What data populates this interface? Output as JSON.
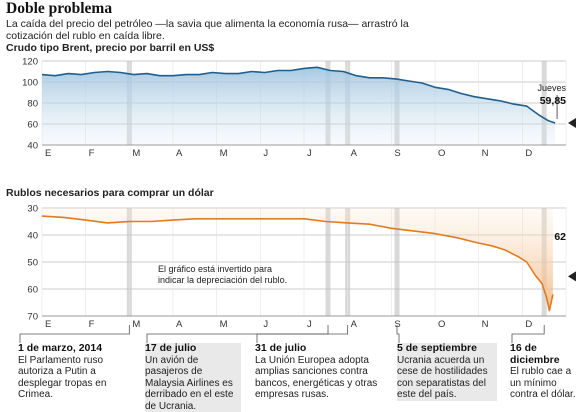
{
  "header": {
    "title": "Doble problema",
    "subtitle": "La caída del precio del petróleo —la savia que alimenta la economía rusa— arrastró la cotización del rublo en caída libre."
  },
  "chart_data": [
    {
      "type": "line",
      "title": "Crudo tipo Brent, precio por barril en US$",
      "months": [
        "E",
        "F",
        "M",
        "A",
        "M",
        "J",
        "J",
        "A",
        "S",
        "O",
        "N",
        "D"
      ],
      "ylim": [
        40,
        120
      ],
      "yticks": [
        40,
        60,
        80,
        100,
        120
      ],
      "grid": true,
      "x": [
        0,
        0.3,
        0.6,
        0.9,
        1.2,
        1.5,
        1.8,
        2.1,
        2.4,
        2.7,
        3.0,
        3.3,
        3.6,
        3.9,
        4.2,
        4.5,
        4.8,
        5.1,
        5.4,
        5.7,
        6.0,
        6.3,
        6.6,
        6.9,
        7.2,
        7.5,
        7.8,
        8.1,
        8.4,
        8.7,
        9.0,
        9.3,
        9.6,
        9.9,
        10.2,
        10.5,
        10.8,
        11.1,
        11.4,
        11.6,
        11.75
      ],
      "y": [
        107,
        106,
        108,
        107,
        109,
        110,
        109,
        107,
        108,
        106,
        106,
        107,
        107,
        109,
        108,
        108,
        110,
        109,
        111,
        111,
        113,
        114,
        111,
        110,
        106,
        104,
        104,
        103,
        101,
        99,
        95,
        93,
        89,
        86,
        84,
        82,
        79,
        77,
        68,
        63,
        61
      ],
      "annotation": {
        "label": "Jueves",
        "value": "59,85"
      },
      "series_color": "#1f5f8f"
    },
    {
      "type": "line",
      "title": "Rublos necesarios para comprar un dólar",
      "months": [
        "E",
        "F",
        "M",
        "A",
        "M",
        "J",
        "J",
        "A",
        "S",
        "O",
        "N",
        "D"
      ],
      "ylim": [
        30,
        70
      ],
      "yticks": [
        30,
        40,
        50,
        60,
        70
      ],
      "inverted": true,
      "grid": true,
      "x": [
        0,
        0.5,
        1.0,
        1.5,
        2.0,
        2.5,
        3.0,
        3.5,
        4.0,
        4.5,
        5.0,
        5.5,
        6.0,
        6.5,
        7.0,
        7.5,
        8.0,
        8.5,
        9.0,
        9.5,
        10.0,
        10.3,
        10.6,
        10.9,
        11.1,
        11.3,
        11.45,
        11.55,
        11.62,
        11.7
      ],
      "y": [
        33,
        33.5,
        34.5,
        35.5,
        35,
        35,
        34.5,
        34,
        34,
        34,
        34,
        34,
        34,
        35,
        35.5,
        36,
        37.5,
        38.5,
        39.5,
        41,
        43,
        44,
        45.5,
        48,
        50,
        55,
        58,
        63,
        68,
        62
      ],
      "annotation": {
        "value": "62",
        "note": "El gráfico está invertido para indicar la depreciación del rublo."
      },
      "series_color": "#e07b1f"
    }
  ],
  "events": [
    {
      "month_pos": 2.0,
      "date": "1 de marzo, 2014",
      "text": "El Parlamento ruso autoriza a Putin a desplegar tropas en Crimea."
    },
    {
      "month_pos": 6.55,
      "date": "17 de julio",
      "text": "Un avión de pasajeros de Malaysia Airlines es derribado en el este de Ucrania."
    },
    {
      "month_pos": 7.0,
      "date": "31 de julio",
      "text": "La Unión Europea adopta amplias sanciones contra bancos, energéticas y otras empresas rusas."
    },
    {
      "month_pos": 8.13,
      "date": "5 de septiembre",
      "text": "Ucrania acuerda un cese de hostilidades con separatistas del este del país."
    },
    {
      "month_pos": 11.5,
      "date": "16 de diciembre",
      "text": "El rublo cae a un mínimo contra el dólar."
    }
  ]
}
